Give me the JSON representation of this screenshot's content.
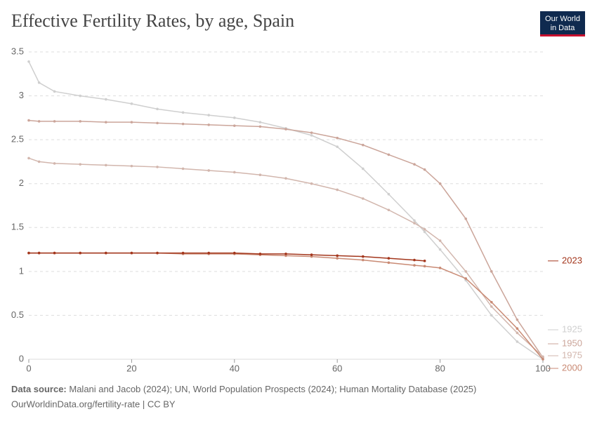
{
  "chart_data": {
    "type": "line",
    "title": "Effective Fertility Rates, by age, Spain",
    "logo": [
      "Our World",
      "in Data"
    ],
    "source_label": "Data source:",
    "source": "Malani and Jacob (2024); UN, World Population Prospects (2024); Human Mortality Database (2025)",
    "footer": "OurWorldinData.org/fertility-rate | CC BY",
    "x": [
      0,
      2,
      5,
      10,
      15,
      20,
      25,
      30,
      35,
      40,
      45,
      50,
      55,
      60,
      65,
      70,
      75,
      77,
      80,
      85,
      90,
      95,
      100
    ],
    "xlim": [
      0,
      100
    ],
    "xticks": [
      0,
      20,
      40,
      60,
      80,
      100
    ],
    "ylim": [
      0,
      3.5
    ],
    "yticks": [
      0,
      0.5,
      1,
      1.5,
      2,
      2.5,
      3,
      3.5
    ],
    "grid": true,
    "series": [
      {
        "name": "1925",
        "color": "#cfcfcf",
        "values": [
          3.39,
          3.15,
          3.05,
          3.0,
          2.96,
          2.91,
          2.85,
          2.81,
          2.78,
          2.75,
          2.7,
          2.63,
          2.55,
          2.42,
          2.17,
          1.88,
          1.58,
          1.45,
          1.25,
          0.9,
          0.5,
          0.2,
          0.0
        ]
      },
      {
        "name": "1950",
        "color": "#cba59a",
        "values": [
          2.72,
          2.71,
          2.71,
          2.71,
          2.7,
          2.7,
          2.69,
          2.68,
          2.67,
          2.66,
          2.65,
          2.62,
          2.58,
          2.52,
          2.44,
          2.33,
          2.22,
          2.16,
          2.0,
          1.6,
          1.0,
          0.45,
          0.02
        ]
      },
      {
        "name": "1975",
        "color": "#d2b6ad",
        "values": [
          2.29,
          2.25,
          2.23,
          2.22,
          2.21,
          2.2,
          2.19,
          2.17,
          2.15,
          2.13,
          2.1,
          2.06,
          2.0,
          1.93,
          1.83,
          1.7,
          1.55,
          1.48,
          1.35,
          1.0,
          0.6,
          0.3,
          0.03
        ]
      },
      {
        "name": "2000",
        "color": "#c98a74",
        "values": [
          1.21,
          1.21,
          1.21,
          1.21,
          1.21,
          1.21,
          1.21,
          1.2,
          1.2,
          1.2,
          1.19,
          1.18,
          1.17,
          1.15,
          1.13,
          1.1,
          1.07,
          1.06,
          1.04,
          0.92,
          0.65,
          0.35,
          0.0
        ]
      },
      {
        "name": "2023",
        "color": "#a3361c",
        "values": [
          1.21,
          1.21,
          1.21,
          1.21,
          1.21,
          1.21,
          1.21,
          1.21,
          1.21,
          1.21,
          1.2,
          1.2,
          1.19,
          1.18,
          1.17,
          1.15,
          1.13,
          1.12,
          null,
          null,
          null,
          null,
          null
        ]
      }
    ]
  }
}
